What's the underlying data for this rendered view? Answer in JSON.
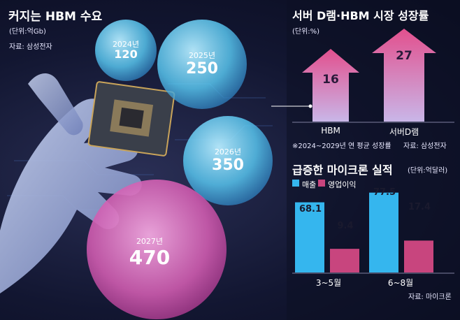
{
  "left_panel": {
    "title": "커지는 HBM 수요",
    "unit": "(단위:억Gb)",
    "source": "자료: 삼성전자"
  },
  "right_top": {
    "title": "서버 D램·HBM 시장 성장률",
    "unit": "(단위:%)",
    "footnote": "※2024~2029년 연 평균 성장률",
    "source": "자료: 삼성전자"
  },
  "right_bottom": {
    "title": "급증한 마이크론 실적",
    "unit": "(단위:억달러)",
    "source": "자료: 마이크론",
    "legend": [
      "매출",
      "영업이익"
    ]
  },
  "colors": {
    "blue": "#35b6ee",
    "pink": "#c8457e",
    "bubble_blue": "#7fd8f5",
    "bubble_pink": "#e070b8"
  },
  "chart_data": [
    {
      "type": "bubble",
      "title": "커지는 HBM 수요",
      "unit": "(단위:억Gb)",
      "categories": [
        "2024년",
        "2025년",
        "2026년",
        "2027년"
      ],
      "values": [
        120,
        250,
        350,
        470
      ]
    },
    {
      "type": "bar",
      "title": "서버 D램·HBM 시장 성장률",
      "unit": "(단위:%)",
      "categories": [
        "HBM",
        "서버D램"
      ],
      "values": [
        16,
        27
      ]
    },
    {
      "type": "bar",
      "title": "급증한 마이크론 실적",
      "unit": "(단위:억달러)",
      "categories": [
        "3~5월",
        "6~8월"
      ],
      "series": [
        {
          "name": "매출",
          "values": [
            68.1,
            77.5
          ]
        },
        {
          "name": "영업이익",
          "values": [
            9.4,
            17.4
          ]
        }
      ]
    }
  ]
}
